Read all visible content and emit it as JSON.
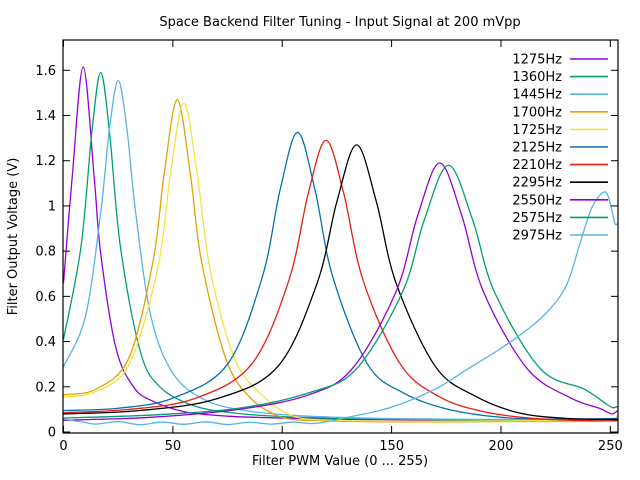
{
  "chart_data": {
    "type": "line",
    "title": "Space Backend Filter Tuning - Input Signal at 200 mVpp",
    "xlabel": "Filter PWM Value (0 ... 255)",
    "ylabel": "Filter Output Voltage (V)",
    "xlim": [
      0,
      253.5
    ],
    "ylim": [
      0,
      1.734
    ],
    "x_ticks": [
      0,
      50,
      100,
      150,
      200,
      250
    ],
    "x_tick_labels": [
      "0",
      "50",
      "100",
      "150",
      "200",
      "250"
    ],
    "y_ticks": [
      0,
      0.2,
      0.4,
      0.6,
      0.8,
      1.0,
      1.2,
      1.4,
      1.6
    ],
    "y_tick_labels": [
      "0",
      "0.2",
      "0.4",
      "0.6",
      "0.8",
      "1",
      "1.2",
      "1.4",
      "1.6"
    ],
    "grid": false,
    "legend_position": "top-right-inside",
    "background_color": "#ffffff",
    "border_color": "#000000",
    "series": [
      {
        "name": "1275Hz",
        "color": "#9400d3",
        "points": [
          [
            0,
            0.66
          ],
          [
            4,
            1.13
          ],
          [
            9,
            1.615
          ],
          [
            14,
            1.13
          ],
          [
            17,
            0.79
          ],
          [
            24,
            0.37
          ],
          [
            32,
            0.2
          ],
          [
            40,
            0.14
          ],
          [
            55,
            0.09
          ],
          [
            75,
            0.07
          ],
          [
            100,
            0.062
          ],
          [
            130,
            0.056
          ],
          [
            160,
            0.054
          ],
          [
            200,
            0.052
          ],
          [
            253,
            0.05
          ]
        ]
      },
      {
        "name": "1360Hz",
        "color": "#009e73",
        "points": [
          [
            0,
            0.41
          ],
          [
            8,
            0.82
          ],
          [
            13,
            1.33
          ],
          [
            17,
            1.59
          ],
          [
            21,
            1.33
          ],
          [
            26,
            0.82
          ],
          [
            35,
            0.36
          ],
          [
            44,
            0.2
          ],
          [
            60,
            0.115
          ],
          [
            80,
            0.082
          ],
          [
            105,
            0.066
          ],
          [
            135,
            0.059
          ],
          [
            170,
            0.055
          ],
          [
            210,
            0.053
          ],
          [
            253,
            0.052
          ]
        ]
      },
      {
        "name": "1445Hz",
        "color": "#56b4e9",
        "points": [
          [
            0,
            0.29
          ],
          [
            10,
            0.51
          ],
          [
            17,
            0.97
          ],
          [
            21,
            1.34
          ],
          [
            25,
            1.555
          ],
          [
            29,
            1.34
          ],
          [
            33,
            0.97
          ],
          [
            40,
            0.51
          ],
          [
            50,
            0.26
          ],
          [
            65,
            0.14
          ],
          [
            85,
            0.092
          ],
          [
            110,
            0.071
          ],
          [
            140,
            0.061
          ],
          [
            175,
            0.057
          ],
          [
            215,
            0.054
          ],
          [
            253,
            0.053
          ]
        ]
      },
      {
        "name": "1700Hz",
        "color": "#e69f00",
        "points": [
          [
            0,
            0.165
          ],
          [
            15,
            0.19
          ],
          [
            30,
            0.33
          ],
          [
            41,
            0.76
          ],
          [
            46,
            1.14
          ],
          [
            52,
            1.47
          ],
          [
            58,
            1.14
          ],
          [
            63,
            0.76
          ],
          [
            74,
            0.33
          ],
          [
            85,
            0.155
          ],
          [
            100,
            0.065
          ],
          [
            120,
            0.05
          ],
          [
            145,
            0.045
          ],
          [
            175,
            0.045
          ],
          [
            210,
            0.046
          ],
          [
            250,
            0.05
          ],
          [
            253,
            0.07
          ]
        ]
      },
      {
        "name": "1725Hz",
        "color": "#f0e442",
        "points": [
          [
            0,
            0.155
          ],
          [
            15,
            0.18
          ],
          [
            30,
            0.3
          ],
          [
            43,
            0.72
          ],
          [
            49,
            1.15
          ],
          [
            55,
            1.455
          ],
          [
            61,
            1.15
          ],
          [
            67,
            0.72
          ],
          [
            78,
            0.33
          ],
          [
            90,
            0.17
          ],
          [
            105,
            0.07
          ],
          [
            125,
            0.052
          ],
          [
            150,
            0.048
          ],
          [
            180,
            0.048
          ],
          [
            215,
            0.05
          ],
          [
            250,
            0.052
          ],
          [
            253,
            0.068
          ]
        ]
      },
      {
        "name": "2125Hz",
        "color": "#0072b2",
        "points": [
          [
            0,
            0.095
          ],
          [
            25,
            0.105
          ],
          [
            50,
            0.15
          ],
          [
            75,
            0.3
          ],
          [
            91,
            0.69
          ],
          [
            99,
            1.07
          ],
          [
            107,
            1.325
          ],
          [
            115,
            1.07
          ],
          [
            123,
            0.69
          ],
          [
            139,
            0.3
          ],
          [
            156,
            0.17
          ],
          [
            176,
            0.1
          ],
          [
            200,
            0.065
          ],
          [
            225,
            0.057
          ],
          [
            253,
            0.06
          ]
        ]
      },
      {
        "name": "2210Hz",
        "color": "#e51e10",
        "points": [
          [
            0,
            0.085
          ],
          [
            30,
            0.1
          ],
          [
            60,
            0.148
          ],
          [
            86,
            0.3
          ],
          [
            103,
            0.67
          ],
          [
            112,
            1.06
          ],
          [
            120,
            1.29
          ],
          [
            128,
            1.06
          ],
          [
            137,
            0.67
          ],
          [
            154,
            0.3
          ],
          [
            172,
            0.155
          ],
          [
            192,
            0.09
          ],
          [
            215,
            0.06
          ],
          [
            240,
            0.05
          ],
          [
            253,
            0.05
          ]
        ]
      },
      {
        "name": "2295Hz",
        "color": "#000000",
        "points": [
          [
            0,
            0.08
          ],
          [
            35,
            0.095
          ],
          [
            70,
            0.147
          ],
          [
            98,
            0.29
          ],
          [
            116,
            0.66
          ],
          [
            125,
            1.02
          ],
          [
            134,
            1.27
          ],
          [
            143,
            1.02
          ],
          [
            152,
            0.66
          ],
          [
            170,
            0.29
          ],
          [
            188,
            0.16
          ],
          [
            208,
            0.085
          ],
          [
            230,
            0.06
          ],
          [
            253,
            0.055
          ]
        ]
      },
      {
        "name": "2550Hz",
        "color": "#9400d3",
        "points": [
          [
            0,
            0.052
          ],
          [
            40,
            0.065
          ],
          [
            80,
            0.1
          ],
          [
            112,
            0.164
          ],
          [
            132,
            0.28
          ],
          [
            152,
            0.62
          ],
          [
            162,
            0.96
          ],
          [
            172,
            1.19
          ],
          [
            182,
            0.96
          ],
          [
            192,
            0.62
          ],
          [
            212,
            0.28
          ],
          [
            232,
            0.15
          ],
          [
            245,
            0.105
          ],
          [
            249,
            0.086
          ],
          [
            251,
            0.08
          ],
          [
            253,
            0.092
          ]
        ]
      },
      {
        "name": "2575Hz",
        "color": "#009e73",
        "points": [
          [
            0,
            0.062
          ],
          [
            40,
            0.075
          ],
          [
            80,
            0.105
          ],
          [
            113,
            0.176
          ],
          [
            134,
            0.28
          ],
          [
            155,
            0.62
          ],
          [
            165,
            0.94
          ],
          [
            176,
            1.18
          ],
          [
            187,
            0.94
          ],
          [
            197,
            0.62
          ],
          [
            218,
            0.28
          ],
          [
            238,
            0.19
          ],
          [
            248,
            0.125
          ],
          [
            251,
            0.108
          ],
          [
            253,
            0.112
          ]
        ]
      },
      {
        "name": "2975Hz",
        "color": "#56b4e9",
        "points": [
          [
            0,
            0.058
          ],
          [
            10,
            0.042
          ],
          [
            15,
            0.035
          ],
          [
            25,
            0.046
          ],
          [
            35,
            0.032
          ],
          [
            45,
            0.044
          ],
          [
            55,
            0.034
          ],
          [
            65,
            0.045
          ],
          [
            75,
            0.033
          ],
          [
            85,
            0.043
          ],
          [
            95,
            0.035
          ],
          [
            105,
            0.044
          ],
          [
            115,
            0.038
          ],
          [
            130,
            0.065
          ],
          [
            150,
            0.11
          ],
          [
            170,
            0.19
          ],
          [
            185,
            0.28
          ],
          [
            200,
            0.37
          ],
          [
            213,
            0.46
          ],
          [
            222,
            0.54
          ],
          [
            230,
            0.65
          ],
          [
            236,
            0.83
          ],
          [
            241,
            0.98
          ],
          [
            245,
            1.045
          ],
          [
            248,
            1.06
          ],
          [
            250,
            1.01
          ],
          [
            252,
            0.925
          ],
          [
            253,
            0.92
          ]
        ]
      }
    ]
  },
  "legend": {
    "items": [
      "1275Hz",
      "1360Hz",
      "1445Hz",
      "1700Hz",
      "1725Hz",
      "2125Hz",
      "2210Hz",
      "2295Hz",
      "2550Hz",
      "2575Hz",
      "2975Hz"
    ]
  }
}
